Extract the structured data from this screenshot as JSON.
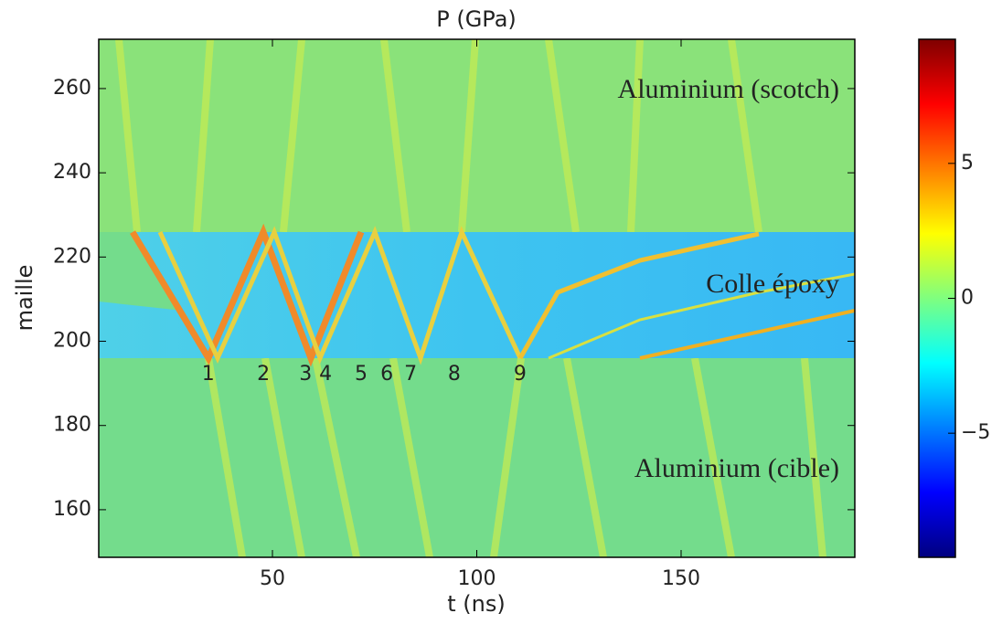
{
  "chart_data": {
    "type": "heatmap",
    "title": "P (GPa)",
    "xlabel": "t (ns)",
    "ylabel": "maille",
    "xlim": [
      7.5,
      192.5
    ],
    "ylim": [
      148.7,
      271.7
    ],
    "xticks": [
      50,
      100,
      150
    ],
    "yticks": [
      160,
      180,
      200,
      220,
      240,
      260
    ],
    "colormap": "jet",
    "clim": [
      -9.6,
      9.6
    ],
    "cticks": [
      {
        "value": -5,
        "label": "−5"
      },
      0,
      5
    ],
    "annotations": [
      {
        "text": "Aluminium (scotch)",
        "x": 188.7,
        "y": 259.3,
        "align": "end",
        "style": "region"
      },
      {
        "text": "Colle époxy",
        "x": 188.7,
        "y": 213.1,
        "align": "end",
        "style": "region"
      },
      {
        "text": "Aluminium (cible)",
        "x": 188.7,
        "y": 169.3,
        "align": "end",
        "style": "region"
      },
      {
        "text": "1",
        "x": 34.3,
        "y": 192.1,
        "align": "middle",
        "style": "num"
      },
      {
        "text": "2",
        "x": 47.8,
        "y": 192.1,
        "align": "middle",
        "style": "num"
      },
      {
        "text": "3",
        "x": 58.1,
        "y": 192.1,
        "align": "middle",
        "style": "num"
      },
      {
        "text": "4",
        "x": 63,
        "y": 192.1,
        "align": "middle",
        "style": "num"
      },
      {
        "text": "5",
        "x": 71.7,
        "y": 192.1,
        "align": "middle",
        "style": "num"
      },
      {
        "text": "6",
        "x": 78,
        "y": 192.1,
        "align": "middle",
        "style": "num"
      },
      {
        "text": "7",
        "x": 83.8,
        "y": 192.1,
        "align": "middle",
        "style": "num"
      },
      {
        "text": "8",
        "x": 94.5,
        "y": 192.1,
        "align": "middle",
        "style": "num"
      },
      {
        "text": "9",
        "x": 110.6,
        "y": 192.1,
        "align": "middle",
        "style": "num"
      }
    ]
  }
}
